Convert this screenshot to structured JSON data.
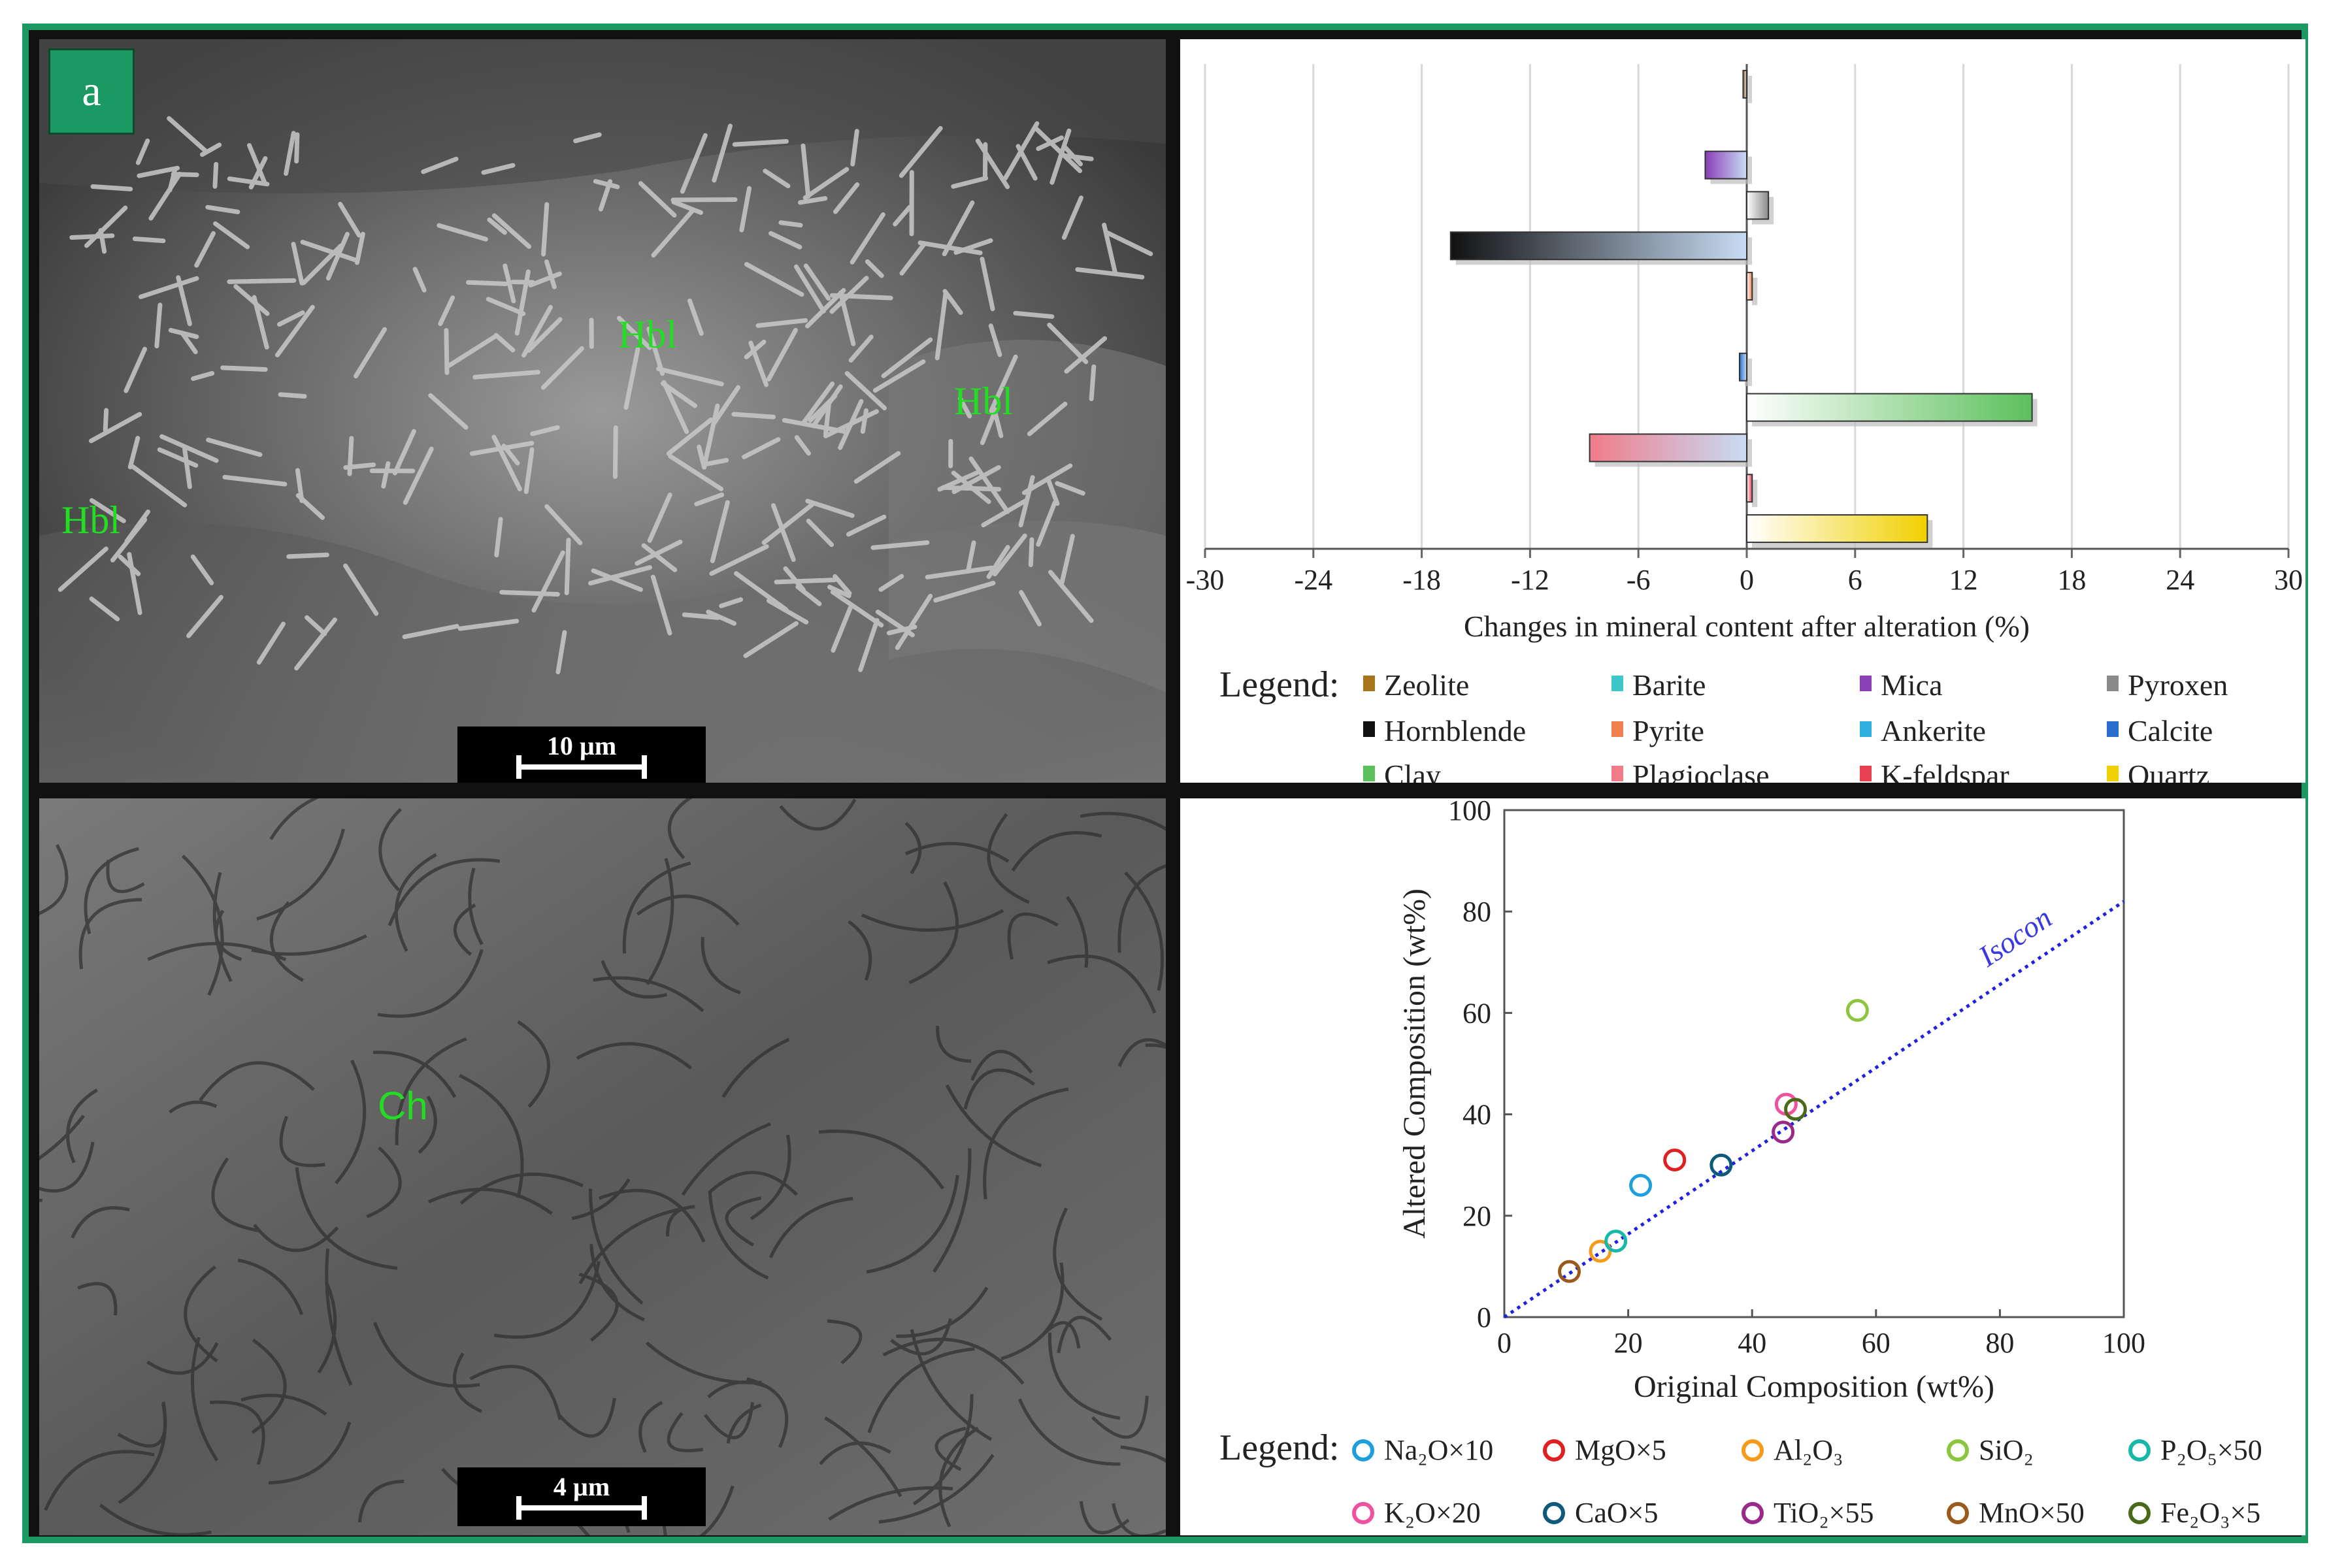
{
  "panel_label": "a",
  "sem_top": {
    "labels": [
      "Hbl",
      "Hbl",
      "Hbl"
    ],
    "scale": "10 µm"
  },
  "sem_bottom": {
    "labels": [
      "Ch"
    ],
    "scale": "4 µm"
  },
  "chart_data": [
    {
      "type": "bar",
      "orientation": "horizontal",
      "xlabel": "Changes in mineral content after alteration (%)",
      "xlim": [
        -30,
        30
      ],
      "xticks": [
        -30,
        -24,
        -18,
        -12,
        -6,
        0,
        6,
        12,
        18,
        24,
        30
      ],
      "grid": true,
      "legend_title": "Legend:",
      "legend_placement": "bottom",
      "categories": [
        "Zeolite",
        "Barite",
        "Mica",
        "Pyroxen",
        "Hornblende",
        "Pyrite",
        "Ankerite",
        "Calcite",
        "Clay",
        "Plagioclase",
        "K-feldspar",
        "Quartz"
      ],
      "values": [
        -0.2,
        0,
        -2.3,
        1.2,
        -16.4,
        0.3,
        0,
        -0.4,
        15.8,
        -8.7,
        0.3,
        10
      ],
      "colors": [
        "#a8741a",
        "#3cc8c8",
        "#8b3fb8",
        "#8a8a8a",
        "#111111",
        "#f08050",
        "#30b0e0",
        "#2a6fd0",
        "#5cc05c",
        "#f07c8a",
        "#e84050",
        "#f0d000"
      ]
    },
    {
      "type": "scatter",
      "xlabel": "Original Composition (wt%)",
      "ylabel": "Altered Composition (wt%)",
      "xlim": [
        0,
        100
      ],
      "ylim": [
        0,
        100
      ],
      "xticks": [
        0,
        20,
        40,
        60,
        80,
        100
      ],
      "yticks": [
        0,
        20,
        40,
        60,
        80,
        100
      ],
      "isocon_label": "Isocon",
      "isocon_slope": 0.82,
      "legend_title": "Legend:",
      "legend_placement": "bottom",
      "series": [
        {
          "name": "Na₂O×10",
          "x": 22,
          "y": 26,
          "color": "#1e9fdc"
        },
        {
          "name": "MgO×5",
          "x": 27.5,
          "y": 31,
          "color": "#e02020"
        },
        {
          "name": "Al₂O₃",
          "x": 15.5,
          "y": 13,
          "color": "#f59a1a"
        },
        {
          "name": "SiO₂",
          "x": 57,
          "y": 60.5,
          "color": "#8cc63e"
        },
        {
          "name": "P₂O₅×50",
          "x": 18,
          "y": 15,
          "color": "#17b8a8"
        },
        {
          "name": "K₂O×20",
          "x": 45.5,
          "y": 42,
          "color": "#f050a0"
        },
        {
          "name": "CaO×5",
          "x": 35,
          "y": 30,
          "color": "#0f5a7a"
        },
        {
          "name": "TiO₂×55",
          "x": 45,
          "y": 36.5,
          "color": "#9a2a8a"
        },
        {
          "name": "MnO×50",
          "x": 10.5,
          "y": 9,
          "color": "#9a5a1a"
        },
        {
          "name": "Fe₂O₃×5",
          "x": 47,
          "y": 41,
          "color": "#4a6a1a"
        }
      ]
    }
  ]
}
